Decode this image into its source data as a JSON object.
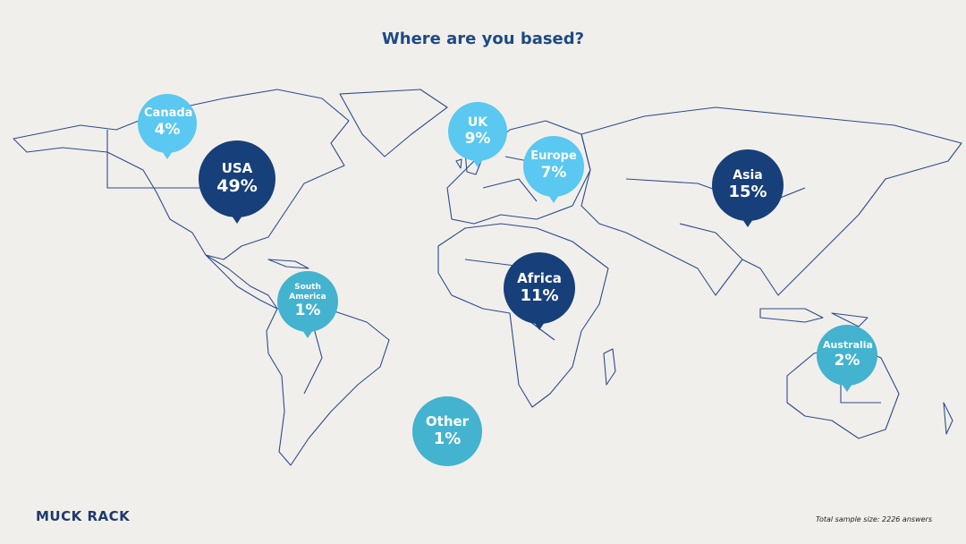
{
  "title": "Where are you based?",
  "regions": [
    {
      "name": "Canada",
      "share": "4%"
    },
    {
      "name": "USA",
      "share": "49%"
    },
    {
      "name": "UK",
      "share": "9%"
    },
    {
      "name": "Europe",
      "share": "7%"
    },
    {
      "name": "Asia",
      "share": "15%"
    },
    {
      "name": "South America",
      "share": "1%"
    },
    {
      "name": "Africa",
      "share": "11%"
    },
    {
      "name": "Australia",
      "share": "2%"
    },
    {
      "name": "Other",
      "share": "1%"
    }
  ],
  "brand": "MUCK RACK",
  "footnote": "Total sample size: 2226 answers"
}
